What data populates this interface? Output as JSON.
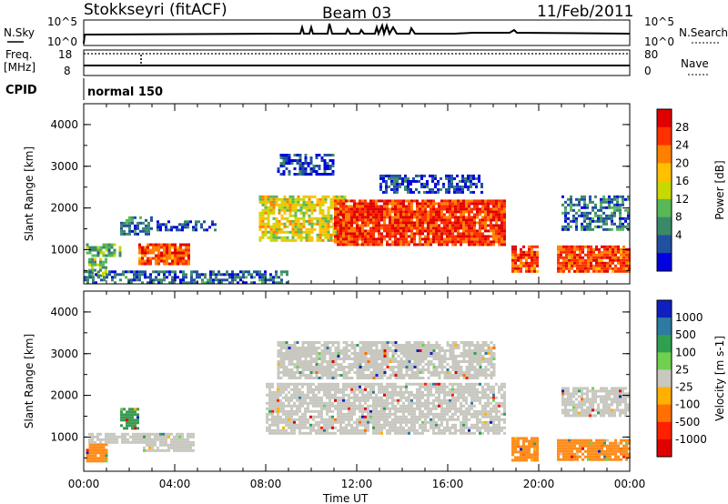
{
  "header": {
    "station": "Stokkseyri (fitACF)",
    "beam": "Beam 03",
    "date": "11/Feb/2011"
  },
  "mini_panels": {
    "nsky_label": "N.Sky",
    "nsky_ticks": [
      "10^5",
      "10^0"
    ],
    "nsearch_label": "N.Search",
    "nsearch_ticks": [
      "10^5",
      "10^0"
    ],
    "freq_label": "Freq.",
    "freq_unit": "[MHz]",
    "freq_ticks": [
      "18",
      "8"
    ],
    "nave_label": "Nave",
    "nave_ticks": [
      "80",
      "0"
    ],
    "cpid_label": "CPID",
    "cpid_value": "normal 150"
  },
  "chart_data": [
    {
      "type": "heatmap",
      "name": "power",
      "ylabel": "Slant Range [km]",
      "xlabel": "Time UT",
      "xlim": [
        0,
        24
      ],
      "ylim": [
        180,
        4500
      ],
      "yticks": [
        "4000",
        "3000",
        "2000",
        "1000"
      ],
      "xticks": [
        "00:00",
        "04:00",
        "08:00",
        "12:00",
        "16:00",
        "20:00",
        "00:00"
      ],
      "colorbar": {
        "label": "Power [dB]",
        "ticks": [
          "28",
          "24",
          "20",
          "16",
          "12",
          "8",
          "4"
        ],
        "colors": [
          "#e00000",
          "#ff3000",
          "#ff8000",
          "#ffc000",
          "#c8d800",
          "#58b858",
          "#3a8a6a",
          "#2050a0",
          "#0000e0"
        ]
      },
      "regions": [
        {
          "t0": 0.1,
          "t1": 1.6,
          "r0": 850,
          "r1": 1150,
          "level": 0.35
        },
        {
          "t0": 0.2,
          "t1": 1.0,
          "r0": 400,
          "r1": 800,
          "level": 0.4
        },
        {
          "t0": 2.4,
          "t1": 4.6,
          "r0": 650,
          "r1": 1150,
          "level": 0.85
        },
        {
          "t0": 1.6,
          "t1": 3.0,
          "r0": 1400,
          "r1": 1800,
          "level": 0.2
        },
        {
          "t0": 3.2,
          "t1": 5.8,
          "r0": 1450,
          "r1": 1700,
          "level": 0.1
        },
        {
          "t0": 7.7,
          "t1": 11.5,
          "r0": 1200,
          "r1": 2300,
          "level": 0.55
        },
        {
          "t0": 11.0,
          "t1": 18.5,
          "r0": 1150,
          "r1": 2200,
          "level": 0.9
        },
        {
          "t0": 8.5,
          "t1": 11.0,
          "r0": 2800,
          "r1": 3300,
          "level": 0.1
        },
        {
          "t0": 13.0,
          "t1": 17.5,
          "r0": 2400,
          "r1": 2800,
          "level": 0.1
        },
        {
          "t0": 18.8,
          "t1": 20.0,
          "r0": 450,
          "r1": 1100,
          "level": 0.85
        },
        {
          "t0": 20.8,
          "t1": 24.0,
          "r0": 450,
          "r1": 1100,
          "level": 0.85
        },
        {
          "t0": 21.0,
          "t1": 24.0,
          "r0": 1500,
          "r1": 2300,
          "level": 0.2
        },
        {
          "t0": 0.0,
          "t1": 9.0,
          "r0": 200,
          "r1": 500,
          "level": 0.15
        }
      ]
    },
    {
      "type": "heatmap",
      "name": "velocity",
      "ylabel": "Slant Range [km]",
      "xlabel": "Time UT",
      "xlim": [
        0,
        24
      ],
      "ylim": [
        180,
        4500
      ],
      "yticks": [
        "4000",
        "3000",
        "2000",
        "1000"
      ],
      "xticks": [
        "00:00",
        "04:00",
        "08:00",
        "12:00",
        "16:00",
        "20:00",
        "00:00"
      ],
      "colorbar": {
        "label": "Velocity [m s-1]",
        "ticks": [
          "1000",
          "500",
          "100",
          "25",
          "-25",
          "-100",
          "-500",
          "-1000"
        ],
        "colors": [
          "#1020c0",
          "#2e7aa0",
          "#30a050",
          "#70d050",
          "#c8c8c0",
          "#ffb000",
          "#ff7000",
          "#ff2000",
          "#e00000"
        ]
      },
      "regions": [
        {
          "t0": 0.1,
          "t1": 1.0,
          "r0": 450,
          "r1": 850,
          "color": "#ff8c1a"
        },
        {
          "t0": 0.2,
          "t1": 3.0,
          "r0": 900,
          "r1": 1100,
          "color": "#c8c8c0"
        },
        {
          "t0": 2.6,
          "t1": 4.8,
          "r0": 650,
          "r1": 1100,
          "color": "#c8c8c0"
        },
        {
          "t0": 1.6,
          "t1": 2.4,
          "r0": 1200,
          "r1": 1700,
          "color": "#3a9a50"
        },
        {
          "t0": 8.0,
          "t1": 18.5,
          "r0": 1100,
          "r1": 2300,
          "color": "#c8c8c0"
        },
        {
          "t0": 8.5,
          "t1": 18.0,
          "r0": 2400,
          "r1": 3300,
          "color": "#c8c8c0"
        },
        {
          "t0": 18.8,
          "t1": 20.0,
          "r0": 450,
          "r1": 1000,
          "color": "#ff8c1a"
        },
        {
          "t0": 20.8,
          "t1": 24.0,
          "r0": 450,
          "r1": 950,
          "color": "#ff8c1a"
        },
        {
          "t0": 21.0,
          "t1": 24.0,
          "r0": 1500,
          "r1": 2200,
          "color": "#c8c8c0"
        }
      ]
    }
  ],
  "colors": {
    "axis": "#000000",
    "background": "#ffffff"
  }
}
